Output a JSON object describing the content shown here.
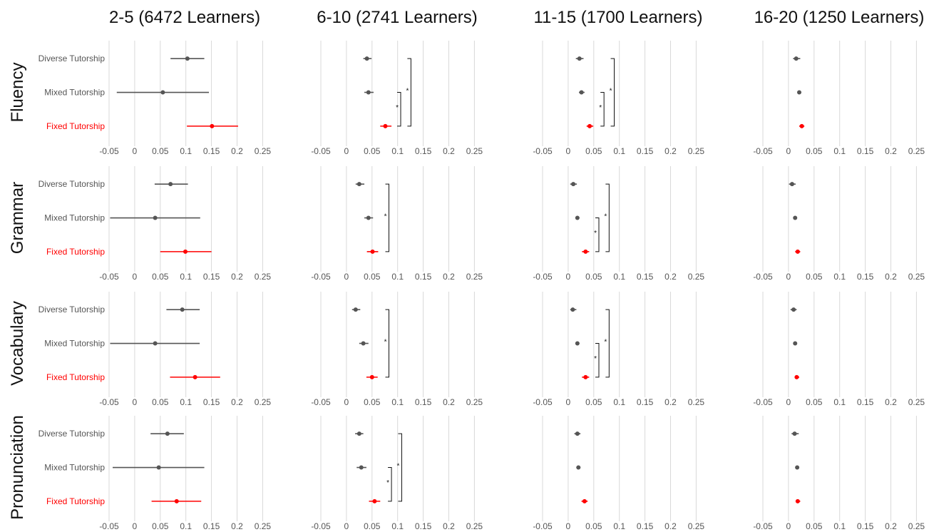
{
  "chart_data": {
    "type": "forest",
    "columns": [
      "2-5 (6472 Learners)",
      "6-10 (2741 Learners)",
      "11-15 (1700 Learners)",
      "16-20 (1250 Learners)"
    ],
    "rows": [
      "Fluency",
      "Grammar",
      "Vocabulary",
      "Pronunciation"
    ],
    "categories": [
      "Diverse Tutorship",
      "Mixed Tutorship",
      "Fixed Tutorship"
    ],
    "x_ticks": [
      "-0.05",
      "0",
      "0.05",
      "0.1",
      "0.15",
      "0.2",
      "0.25"
    ],
    "xlim": [
      -0.05,
      0.25
    ],
    "grid": true,
    "colors": {
      "default": "#555555",
      "highlight": "#ff0000",
      "grid": "#d9d9d9",
      "text": "#555555"
    },
    "significance_label": "*",
    "panels": [
      {
        "row": 0,
        "col": 0,
        "points": [
          {
            "est": 0.103,
            "lo": 0.07,
            "hi": 0.136
          },
          {
            "est": 0.055,
            "lo": -0.035,
            "hi": 0.145
          },
          {
            "est": 0.151,
            "lo": 0.102,
            "hi": 0.202
          }
        ],
        "brackets": []
      },
      {
        "row": 0,
        "col": 1,
        "points": [
          {
            "est": 0.04,
            "lo": 0.033,
            "hi": 0.049
          },
          {
            "est": 0.043,
            "lo": 0.035,
            "hi": 0.053
          },
          {
            "est": 0.076,
            "lo": 0.066,
            "hi": 0.088
          }
        ],
        "brackets": [
          {
            "from": 1,
            "to": 2,
            "x": 0.106
          },
          {
            "from": 0,
            "to": 2,
            "x": 0.126
          }
        ]
      },
      {
        "row": 0,
        "col": 2,
        "points": [
          {
            "est": 0.022,
            "lo": 0.015,
            "hi": 0.03
          },
          {
            "est": 0.026,
            "lo": 0.021,
            "hi": 0.032
          },
          {
            "est": 0.042,
            "lo": 0.036,
            "hi": 0.049
          }
        ],
        "brackets": [
          {
            "from": 1,
            "to": 2,
            "x": 0.07
          },
          {
            "from": 0,
            "to": 2,
            "x": 0.09
          }
        ]
      },
      {
        "row": 0,
        "col": 3,
        "points": [
          {
            "est": 0.015,
            "lo": 0.009,
            "hi": 0.023
          },
          {
            "est": 0.021,
            "lo": 0.018,
            "hi": 0.025
          },
          {
            "est": 0.026,
            "lo": 0.021,
            "hi": 0.031
          }
        ],
        "brackets": []
      },
      {
        "row": 1,
        "col": 0,
        "points": [
          {
            "est": 0.07,
            "lo": 0.039,
            "hi": 0.104
          },
          {
            "est": 0.04,
            "lo": -0.048,
            "hi": 0.128
          },
          {
            "est": 0.099,
            "lo": 0.05,
            "hi": 0.15
          }
        ],
        "brackets": []
      },
      {
        "row": 1,
        "col": 1,
        "points": [
          {
            "est": 0.025,
            "lo": 0.018,
            "hi": 0.035
          },
          {
            "est": 0.043,
            "lo": 0.035,
            "hi": 0.052
          },
          {
            "est": 0.051,
            "lo": 0.04,
            "hi": 0.062
          }
        ],
        "brackets": [
          {
            "from": 0,
            "to": 2,
            "x": 0.083
          }
        ]
      },
      {
        "row": 1,
        "col": 2,
        "points": [
          {
            "est": 0.01,
            "lo": 0.004,
            "hi": 0.017
          },
          {
            "est": 0.018,
            "lo": 0.014,
            "hi": 0.022
          },
          {
            "est": 0.034,
            "lo": 0.027,
            "hi": 0.041
          }
        ],
        "brackets": [
          {
            "from": 1,
            "to": 2,
            "x": 0.06
          },
          {
            "from": 0,
            "to": 2,
            "x": 0.08
          }
        ]
      },
      {
        "row": 1,
        "col": 3,
        "points": [
          {
            "est": 0.007,
            "lo": 0.001,
            "hi": 0.014
          },
          {
            "est": 0.013,
            "lo": 0.01,
            "hi": 0.016
          },
          {
            "est": 0.018,
            "lo": 0.013,
            "hi": 0.023
          }
        ],
        "brackets": []
      },
      {
        "row": 2,
        "col": 0,
        "points": [
          {
            "est": 0.093,
            "lo": 0.062,
            "hi": 0.127
          },
          {
            "est": 0.04,
            "lo": -0.048,
            "hi": 0.127
          },
          {
            "est": 0.118,
            "lo": 0.069,
            "hi": 0.167
          }
        ],
        "brackets": []
      },
      {
        "row": 2,
        "col": 1,
        "points": [
          {
            "est": 0.018,
            "lo": 0.011,
            "hi": 0.027
          },
          {
            "est": 0.033,
            "lo": 0.025,
            "hi": 0.043
          },
          {
            "est": 0.05,
            "lo": 0.039,
            "hi": 0.061
          }
        ],
        "brackets": [
          {
            "from": 0,
            "to": 2,
            "x": 0.083
          }
        ]
      },
      {
        "row": 2,
        "col": 2,
        "points": [
          {
            "est": 0.009,
            "lo": 0.004,
            "hi": 0.016
          },
          {
            "est": 0.018,
            "lo": 0.014,
            "hi": 0.022
          },
          {
            "est": 0.034,
            "lo": 0.027,
            "hi": 0.041
          }
        ],
        "brackets": [
          {
            "from": 1,
            "to": 2,
            "x": 0.06
          },
          {
            "from": 0,
            "to": 2,
            "x": 0.08
          }
        ]
      },
      {
        "row": 2,
        "col": 3,
        "points": [
          {
            "est": 0.01,
            "lo": 0.004,
            "hi": 0.016
          },
          {
            "est": 0.013,
            "lo": 0.01,
            "hi": 0.016
          },
          {
            "est": 0.016,
            "lo": 0.012,
            "hi": 0.021
          }
        ],
        "brackets": []
      },
      {
        "row": 3,
        "col": 0,
        "points": [
          {
            "est": 0.064,
            "lo": 0.031,
            "hi": 0.096
          },
          {
            "est": 0.047,
            "lo": -0.043,
            "hi": 0.136
          },
          {
            "est": 0.082,
            "lo": 0.033,
            "hi": 0.13
          }
        ],
        "brackets": []
      },
      {
        "row": 3,
        "col": 1,
        "points": [
          {
            "est": 0.025,
            "lo": 0.017,
            "hi": 0.033
          },
          {
            "est": 0.029,
            "lo": 0.02,
            "hi": 0.039
          },
          {
            "est": 0.055,
            "lo": 0.044,
            "hi": 0.066
          }
        ],
        "brackets": [
          {
            "from": 1,
            "to": 2,
            "x": 0.088
          },
          {
            "from": 0,
            "to": 2,
            "x": 0.108
          }
        ]
      },
      {
        "row": 3,
        "col": 2,
        "points": [
          {
            "est": 0.018,
            "lo": 0.012,
            "hi": 0.024
          },
          {
            "est": 0.02,
            "lo": 0.016,
            "hi": 0.024
          },
          {
            "est": 0.032,
            "lo": 0.026,
            "hi": 0.038
          }
        ],
        "brackets": []
      },
      {
        "row": 3,
        "col": 3,
        "points": [
          {
            "est": 0.012,
            "lo": 0.006,
            "hi": 0.02
          },
          {
            "est": 0.017,
            "lo": 0.014,
            "hi": 0.021
          },
          {
            "est": 0.018,
            "lo": 0.014,
            "hi": 0.023
          }
        ],
        "brackets": []
      }
    ]
  }
}
